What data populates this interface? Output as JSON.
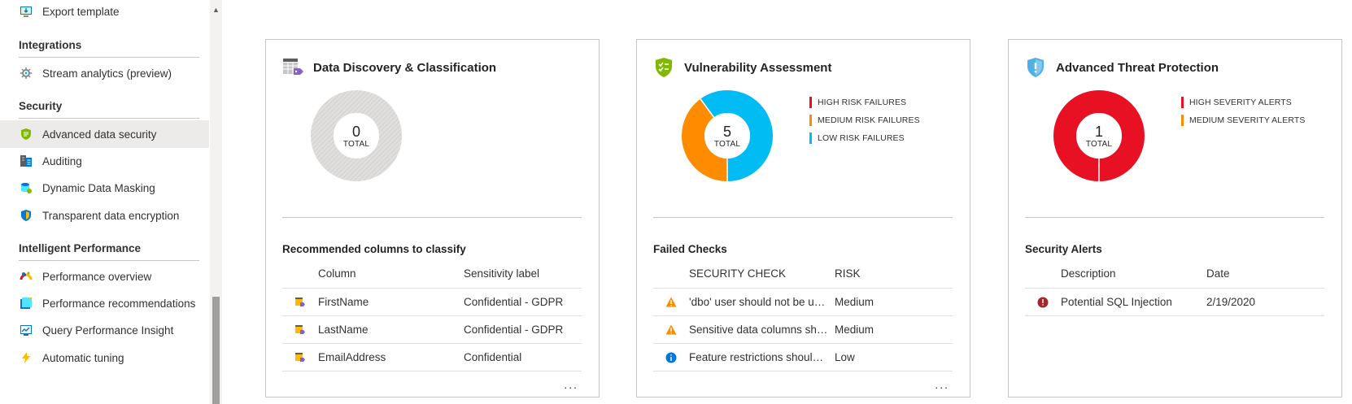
{
  "sidebar": {
    "items_top": [
      {
        "label": "Export template",
        "icon": "export-template-icon"
      }
    ],
    "sections": [
      {
        "header": "Integrations",
        "items": [
          {
            "label": "Stream analytics (preview)",
            "icon": "stream-analytics-icon"
          }
        ]
      },
      {
        "header": "Security",
        "items": [
          {
            "label": "Advanced data security",
            "icon": "advanced-data-security-icon",
            "active": true
          },
          {
            "label": "Auditing",
            "icon": "auditing-icon"
          },
          {
            "label": "Dynamic Data Masking",
            "icon": "dynamic-data-masking-icon"
          },
          {
            "label": "Transparent data encryption",
            "icon": "transparent-data-encryption-icon"
          }
        ]
      },
      {
        "header": "Intelligent Performance",
        "items": [
          {
            "label": "Performance overview",
            "icon": "performance-overview-icon"
          },
          {
            "label": "Performance recommendations",
            "icon": "performance-recommendations-icon"
          },
          {
            "label": "Query Performance Insight",
            "icon": "query-performance-insight-icon"
          },
          {
            "label": "Automatic tuning",
            "icon": "automatic-tuning-icon"
          }
        ]
      }
    ]
  },
  "cards": {
    "classification": {
      "title": "Data Discovery & Classification",
      "icon": "data-classification-icon",
      "total": "0",
      "total_label": "TOTAL",
      "section_title": "Recommended columns to classify",
      "columns": [
        "Column",
        "Sensitivity label"
      ],
      "rows": [
        {
          "column": "FirstName",
          "label": "Confidential - GDPR"
        },
        {
          "column": "LastName",
          "label": "Confidential - GDPR"
        },
        {
          "column": "EmailAddress",
          "label": "Confidential"
        }
      ],
      "more": "..."
    },
    "vulnerability": {
      "title": "Vulnerability Assessment",
      "icon": "vulnerability-shield-icon",
      "total": "5",
      "total_label": "TOTAL",
      "legend": [
        {
          "label": "HIGH RISK FAILURES",
          "color": "#e81123"
        },
        {
          "label": "MEDIUM RISK FAILURES",
          "color": "#ff8c00"
        },
        {
          "label": "LOW RISK FAILURES",
          "color": "#00bcf2"
        }
      ],
      "donut": [
        {
          "name": "medium",
          "value": 2,
          "color": "#ff8c00"
        },
        {
          "name": "low",
          "value": 3,
          "color": "#00bcf2"
        }
      ],
      "section_title": "Failed Checks",
      "columns": [
        "SECURITY CHECK",
        "RISK"
      ],
      "rows": [
        {
          "icon": "warning-icon",
          "check": "'dbo' user should not be used for normal service operation",
          "risk": "Medium"
        },
        {
          "icon": "warning-icon",
          "check": "Sensitive data columns should be classified",
          "risk": "Medium"
        },
        {
          "icon": "info-icon",
          "check": "Feature restrictions should be enabled",
          "risk": "Low"
        }
      ],
      "more": "..."
    },
    "threat": {
      "title": "Advanced Threat Protection",
      "icon": "threat-protection-shield-icon",
      "total": "1",
      "total_label": "TOTAL",
      "legend": [
        {
          "label": "HIGH SEVERITY ALERTS",
          "color": "#e81123"
        },
        {
          "label": "MEDIUM SEVERITY ALERTS",
          "color": "#ff8c00"
        }
      ],
      "donut": [
        {
          "name": "high",
          "value": 1,
          "color": "#e81123"
        }
      ],
      "section_title": "Security Alerts",
      "columns": [
        "Description",
        "Date"
      ],
      "rows": [
        {
          "icon": "error-icon",
          "description": "Potential SQL Injection",
          "date": "2/19/2020"
        }
      ]
    }
  }
}
